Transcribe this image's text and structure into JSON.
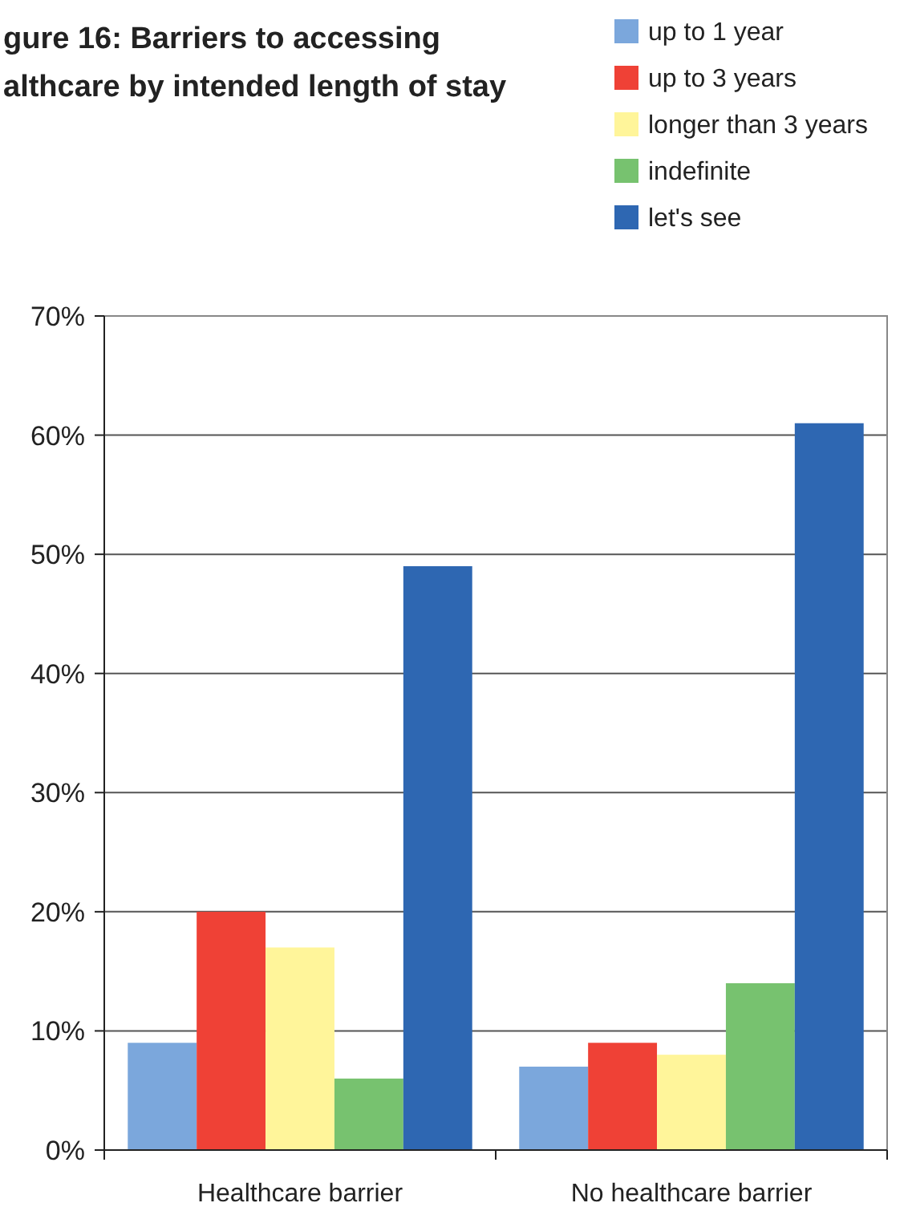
{
  "chart_data": {
    "type": "bar",
    "title": "gure 16: Barriers to accessing\nalthcare by intended length of stay",
    "categories": [
      "Healthcare barrier",
      "No healthcare barrier"
    ],
    "series": [
      {
        "name": "up to 1 year",
        "color": "#7ba7dc",
        "values": [
          9,
          7
        ]
      },
      {
        "name": "up to 3 years",
        "color": "#ef4136",
        "values": [
          20,
          9
        ]
      },
      {
        "name": "longer than 3 years",
        "color": "#fff59a",
        "values": [
          17,
          8
        ]
      },
      {
        "name": "indefinite",
        "color": "#77c26f",
        "values": [
          6,
          14
        ]
      },
      {
        "name": "let's see",
        "color": "#2e67b2",
        "values": [
          49,
          61
        ]
      }
    ],
    "ylim": [
      0,
      70
    ],
    "yticks": [
      {
        "value": 0,
        "label": "0%"
      },
      {
        "value": 10,
        "label": "10%"
      },
      {
        "value": 20,
        "label": "20%"
      },
      {
        "value": 30,
        "label": "30%"
      },
      {
        "value": 40,
        "label": "40%"
      },
      {
        "value": 50,
        "label": "50%"
      },
      {
        "value": 60,
        "label": "60%"
      },
      {
        "value": 70,
        "label": "70%"
      }
    ],
    "grid": "y",
    "legend": "top right"
  }
}
